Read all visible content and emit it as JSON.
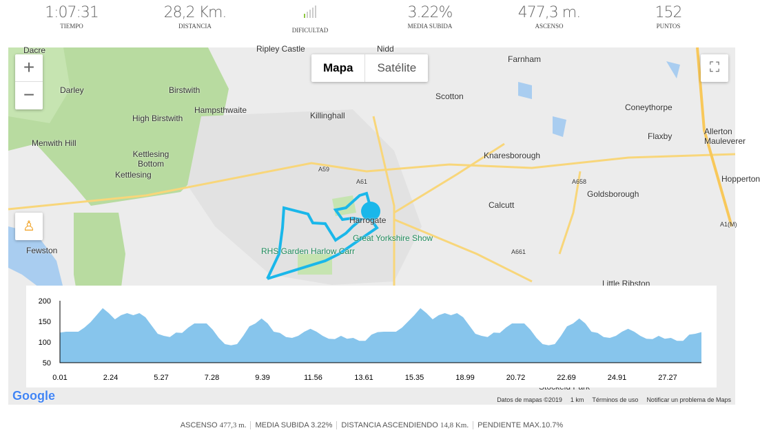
{
  "stats": [
    {
      "value": "1:07:31",
      "label": "TIEMPO"
    },
    {
      "value": "28,2 Km.",
      "label": "DISTANCIA"
    },
    {
      "value": "",
      "label": "DIFICULTAD",
      "difficulty_level": 1,
      "difficulty_max": 5,
      "color": "#8dc63f"
    },
    {
      "value": "3.22%",
      "label": "MEDIA SUBIDA"
    },
    {
      "value": "477,3 m.",
      "label": "ASCENSO"
    },
    {
      "value": "152",
      "label": "PUNTOS"
    }
  ],
  "map": {
    "zoom_in": "+",
    "zoom_out": "−",
    "types": [
      "Mapa",
      "Satélite"
    ],
    "selected_type": "Mapa",
    "fullscreen_icon": "fullscreen-icon",
    "pegman_icon": "street-view-icon",
    "logo": "Google",
    "attribution": "Datos de mapas ©2019",
    "scale": "1 km",
    "terms": "Términos de uso",
    "report": "Notificar un problema de Maps",
    "route_color": "#1ab7ea",
    "places": [
      "Dacre",
      "Ripley Castle",
      "Nidd",
      "Farnham",
      "Darley",
      "Birstwith",
      "Scotton",
      "Coneythorpe",
      "Hampsthwaite",
      "Killinghall",
      "Flaxby",
      "Allerton Mauleverer",
      "High Birstwith",
      "Menwith Hill",
      "Kettlesing Bottom",
      "Kettlesing",
      "Knaresborough",
      "Goldsborough",
      "Hopperton",
      "Calcutt",
      "Harrogate",
      "Great Yorkshire Show",
      "RHS Garden Harlow Carr",
      "Fewston",
      "Little Ribston",
      "Stockeld Park",
      "A59",
      "A61",
      "A658",
      "A661",
      "A1(M)"
    ]
  },
  "chart_data": {
    "type": "area",
    "color": "#87c5ec",
    "yticks": [
      200,
      150,
      100,
      50
    ],
    "ylim": [
      50,
      200
    ],
    "xtick_labels": [
      "0.01",
      "2.24",
      "5.27",
      "7.28",
      "9.39",
      "11.56",
      "13.61",
      "15.35",
      "18.99",
      "20.72",
      "22.69",
      "24.91",
      "27.27"
    ],
    "xlim": [
      0.01,
      28.2
    ],
    "elevation": [
      123,
      125,
      125,
      125,
      135,
      148,
      165,
      182,
      170,
      155,
      165,
      170,
      165,
      170,
      160,
      140,
      120,
      115,
      112,
      123,
      122,
      135,
      145,
      145,
      145,
      130,
      110,
      95,
      92,
      95,
      115,
      138,
      145,
      157,
      145,
      125,
      122,
      112,
      110,
      115,
      125,
      132,
      125,
      115,
      108,
      107,
      115,
      108,
      110,
      103,
      103,
      118,
      124,
      125,
      125,
      125,
      135,
      150,
      165,
      182,
      170,
      155,
      165,
      170,
      165,
      170,
      160,
      140,
      120,
      115,
      112,
      123,
      122,
      135,
      145,
      145,
      145,
      130,
      110,
      95,
      92,
      95,
      115,
      138,
      145,
      157,
      145,
      125,
      122,
      112,
      110,
      115,
      125,
      132,
      125,
      115,
      108,
      107,
      115,
      108,
      110,
      103,
      103,
      118,
      120,
      124
    ]
  },
  "footer": [
    {
      "label": "ASCENSO",
      "value": "477,3 m."
    },
    {
      "label": "MEDIA SUBIDA",
      "value": "3.22%"
    },
    {
      "label": "DISTANCIA ASCENDIENDO",
      "value": "14,8 Km."
    },
    {
      "label": "PENDIENTE MAX.",
      "value": "10.7%"
    }
  ]
}
